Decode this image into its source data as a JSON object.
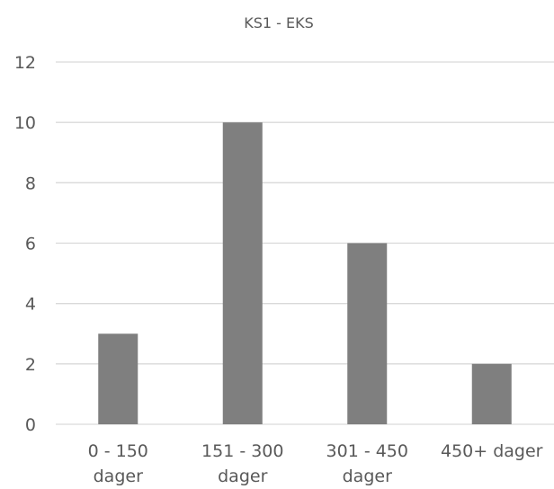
{
  "chart_data": {
    "type": "bar",
    "title": "KS1 - EKS",
    "xlabel": "",
    "ylabel": "",
    "categories": [
      [
        "0 - 150",
        "dager"
      ],
      [
        "151 - 300",
        "dager"
      ],
      [
        "301 - 450",
        "dager"
      ],
      [
        "450+ dager"
      ]
    ],
    "values": [
      3,
      10,
      6,
      2
    ],
    "ylim": [
      0,
      12
    ],
    "yticks": [
      0,
      2,
      4,
      6,
      8,
      10,
      12
    ],
    "grid": true,
    "legend": "none",
    "colors": {
      "bar": "#7f7f7f",
      "grid": "#d9d9d9",
      "text": "#595959"
    }
  }
}
